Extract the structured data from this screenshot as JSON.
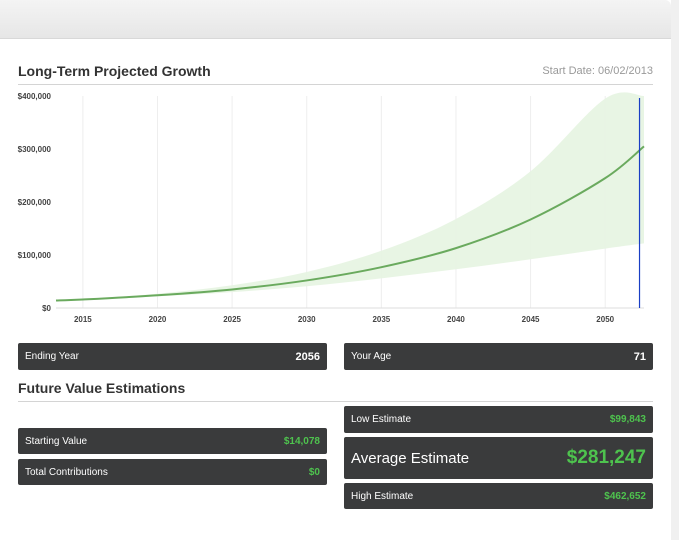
{
  "header": {
    "title": "Long-Term Projected Growth",
    "start_date": "Start Date: 06/02/2013"
  },
  "chart_data": {
    "type": "line",
    "x_ticks": [
      "2015",
      "2020",
      "2025",
      "2030",
      "2035",
      "2040",
      "2045",
      "2050"
    ],
    "y_ticks": [
      "$0",
      "$100,000",
      "$200,000",
      "$300,000",
      "$400,000"
    ],
    "xlim": [
      2013.2,
      2052.6
    ],
    "ylim": [
      0,
      400000
    ],
    "marker_year": 2052.3,
    "series": [
      {
        "type": "line",
        "x": [
          2013.2,
          2015,
          2020,
          2025,
          2030,
          2035,
          2040,
          2045,
          2050,
          2052.6
        ],
        "y": [
          14078,
          16000,
          24000,
          35000,
          52000,
          77000,
          113000,
          167000,
          245000,
          305000
        ]
      },
      {
        "type": "band",
        "x": [
          2013.2,
          2015,
          2020,
          2025,
          2030,
          2035,
          2040,
          2045,
          2050,
          2052.6
        ],
        "low": [
          14078,
          15500,
          22000,
          30000,
          41000,
          56000,
          73000,
          92000,
          112000,
          122000
        ],
        "high": [
          14078,
          16500,
          27000,
          43000,
          68000,
          108000,
          168000,
          258000,
          395000,
          485000
        ]
      }
    ],
    "colors": {
      "line": "#6aaa5e",
      "band": "#e6f4e1",
      "marker": "#1a3ec4"
    },
    "grid": "vertical"
  },
  "inputs": {
    "ending_year": {
      "label": "Ending Year",
      "value": "2056"
    },
    "your_age": {
      "label": "Your Age",
      "value": "71"
    }
  },
  "estimations": {
    "title": "Future Value Estimations",
    "starting_value": {
      "label": "Starting Value",
      "value": "$14,078"
    },
    "total_contributions": {
      "label": "Total Contributions",
      "value": "$0"
    },
    "low": {
      "label": "Low Estimate",
      "value": "$99,843"
    },
    "average": {
      "label": "Average Estimate",
      "value": "$281,247"
    },
    "high": {
      "label": "High Estimate",
      "value": "$462,652"
    }
  },
  "accent_colors": {
    "green": "#4ec34e",
    "bar_bg": "#3a3b3c"
  }
}
